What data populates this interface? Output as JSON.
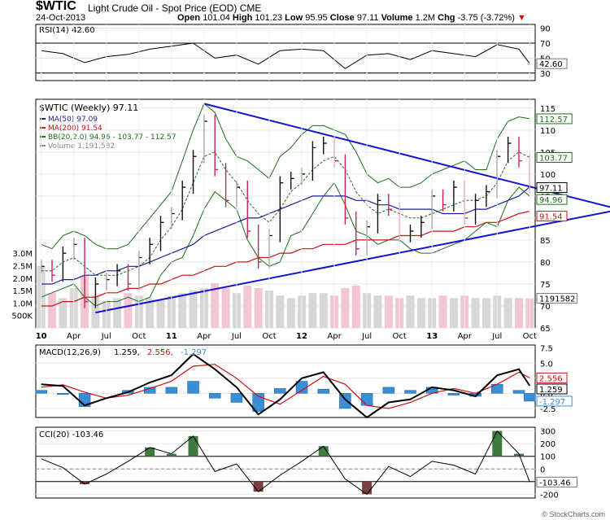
{
  "header": {
    "symbol": "$WTIC",
    "name": "Light Crude Oil - Spot Price (EOD)",
    "exchange": "CME",
    "date": "24-Oct-2013",
    "open_label": "Open",
    "open": "101.04",
    "high_label": "High",
    "high": "101.23",
    "low_label": "Low",
    "low": "95.95",
    "close_label": "Close",
    "close": "97.11",
    "volume_label": "Volume",
    "volume": "1.2M",
    "chg_label": "Chg",
    "chg": "-3.75 (-3.72%)"
  },
  "brand": "© StockCharts.com",
  "colors": {
    "ma50": "#1a1aa0",
    "ma200": "#cc1111",
    "bb": "#1f6e1f",
    "trend": "#1414cc",
    "up": "#111111",
    "down": "#cc2255",
    "macd_hist": "#3a8ed6",
    "cci_fill": "#3f7a3f",
    "cci_neg": "#7a3f3f"
  },
  "chart_data": [
    {
      "type": "line",
      "panel": "RSI",
      "legend": "RSI(14) 42.60",
      "last_value": "42.60",
      "y_ticks": [
        "90",
        "70",
        "50",
        "30"
      ],
      "ylim": [
        20,
        95
      ],
      "overbought": 70,
      "oversold": 30,
      "x": [
        "2010-01",
        "2010-03",
        "2010-05",
        "2010-07",
        "2010-09",
        "2010-11",
        "2011-01",
        "2011-03",
        "2011-05",
        "2011-07",
        "2011-09",
        "2011-11",
        "2012-01",
        "2012-03",
        "2012-05",
        "2012-07",
        "2012-09",
        "2012-11",
        "2013-01",
        "2013-03",
        "2013-05",
        "2013-07",
        "2013-09",
        "2013-10"
      ],
      "values": [
        60,
        56,
        44,
        52,
        55,
        62,
        66,
        70,
        50,
        54,
        42,
        60,
        62,
        60,
        36,
        54,
        56,
        48,
        60,
        56,
        52,
        68,
        62,
        42.6
      ]
    },
    {
      "type": "line",
      "panel": "Price",
      "legend": [
        {
          "name": "$WTIC (Weekly) 97.11",
          "color": "#000000"
        },
        {
          "name": "MA(50) 97.09",
          "color": "#1a1aa0"
        },
        {
          "name": "MA(200) 91.54",
          "color": "#cc1111"
        },
        {
          "name": "BB(20,2.0) 94.96 - 103.77 - 112.57",
          "color": "#1f6e1f"
        },
        {
          "name": "Volume 1,191,582",
          "color": "#888888"
        }
      ],
      "x_labels": [
        "10",
        "Apr",
        "Jul",
        "Oct",
        "11",
        "Apr",
        "Jul",
        "Oct",
        "12",
        "Apr",
        "Jul",
        "Oct",
        "13",
        "Apr",
        "Jul",
        "Oct"
      ],
      "y_ticks": [
        "115",
        "110",
        "105",
        "100",
        "95",
        "90",
        "85",
        "80",
        "75",
        "70",
        "65"
      ],
      "volume_ticks": [
        "3.0M",
        "2.5M",
        "2.0M",
        "1.5M",
        "1.0M",
        "500K"
      ],
      "ylim": [
        65,
        117
      ],
      "last_labels": {
        "bb_upper": "112.57",
        "bb_mid": "103.77",
        "close": "97.11",
        "bb_lower": "94.96",
        "ma200": "91.54",
        "volume": "1191582"
      },
      "x": [
        "2010-01",
        "2010-02",
        "2010-03",
        "2010-04",
        "2010-05",
        "2010-06",
        "2010-07",
        "2010-08",
        "2010-09",
        "2010-10",
        "2010-11",
        "2010-12",
        "2011-01",
        "2011-02",
        "2011-03",
        "2011-04",
        "2011-05",
        "2011-06",
        "2011-07",
        "2011-08",
        "2011-09",
        "2011-10",
        "2011-11",
        "2011-12",
        "2012-01",
        "2012-02",
        "2012-03",
        "2012-04",
        "2012-05",
        "2012-06",
        "2012-07",
        "2012-08",
        "2012-09",
        "2012-10",
        "2012-11",
        "2012-12",
        "2013-01",
        "2013-02",
        "2013-03",
        "2013-04",
        "2013-05",
        "2013-06",
        "2013-07",
        "2013-08",
        "2013-09",
        "2013-10"
      ],
      "close": [
        79,
        77,
        82,
        84,
        71,
        75,
        76,
        78,
        75,
        81,
        84,
        89,
        91,
        97,
        104,
        112,
        101,
        94,
        97,
        87,
        80,
        86,
        98,
        99,
        100,
        106,
        107,
        103,
        90,
        83,
        88,
        94,
        92,
        86,
        87,
        89,
        95,
        93,
        97,
        90,
        94,
        96,
        104,
        107,
        103,
        97.11
      ],
      "ma50": [
        75,
        75,
        76,
        76,
        77,
        77,
        78,
        78,
        79,
        79,
        80,
        81,
        82,
        83,
        84,
        86,
        87,
        88,
        89,
        90,
        90,
        91,
        92,
        93,
        94,
        95,
        95,
        95,
        95,
        94,
        94,
        93,
        93,
        92,
        92,
        92,
        92,
        91,
        91,
        91,
        92,
        92,
        93,
        94,
        95,
        97.09
      ],
      "ma200": [
        70,
        70,
        71,
        71,
        72,
        72,
        73,
        73,
        74,
        74,
        75,
        75,
        76,
        77,
        77,
        78,
        79,
        79,
        80,
        80,
        81,
        81,
        82,
        82,
        83,
        83,
        84,
        84,
        84,
        85,
        85,
        85,
        85,
        86,
        86,
        86,
        87,
        87,
        87,
        88,
        88,
        89,
        89,
        90,
        91,
        91.54
      ],
      "bb_upper": [
        84,
        83,
        86,
        87,
        86,
        84,
        83,
        83,
        84,
        87,
        90,
        93,
        96,
        103,
        110,
        116,
        114,
        108,
        104,
        103,
        101,
        99,
        104,
        106,
        109,
        111,
        111,
        110,
        109,
        105,
        100,
        98,
        99,
        97,
        97,
        98,
        100,
        101,
        102,
        103,
        101,
        101,
        108,
        112,
        113,
        112.57
      ],
      "bb_mid": [
        78,
        78,
        80,
        81,
        79,
        77,
        77,
        77,
        78,
        79,
        81,
        85,
        88,
        92,
        98,
        104,
        105,
        101,
        98,
        94,
        91,
        89,
        92,
        96,
        98,
        101,
        103,
        104,
        101,
        96,
        93,
        91,
        92,
        91,
        90,
        90,
        91,
        92,
        93,
        94,
        94,
        95,
        98,
        103,
        105,
        103.77
      ],
      "bb_lower": [
        72,
        73,
        74,
        75,
        72,
        70,
        71,
        71,
        72,
        71,
        72,
        77,
        80,
        81,
        86,
        92,
        96,
        94,
        92,
        85,
        81,
        79,
        80,
        86,
        87,
        91,
        95,
        98,
        93,
        87,
        86,
        84,
        85,
        85,
        83,
        82,
        82,
        83,
        84,
        85,
        87,
        89,
        88,
        94,
        97,
        94.96
      ],
      "volume_m": [
        2.5,
        1.4,
        1.2,
        1.6,
        2.1,
        1.3,
        1.1,
        1.2,
        1.4,
        1.3,
        1.2,
        1.1,
        1.3,
        1.4,
        1.5,
        1.6,
        1.8,
        1.6,
        1.4,
        1.7,
        1.6,
        1.5,
        1.3,
        1.2,
        1.3,
        1.4,
        1.4,
        1.3,
        1.6,
        1.7,
        1.4,
        1.3,
        1.3,
        1.2,
        1.3,
        1.2,
        1.2,
        1.3,
        1.2,
        1.3,
        1.2,
        1.2,
        1.3,
        1.2,
        1.2,
        1.19
      ]
    },
    {
      "type": "line",
      "panel": "MACD",
      "legend": [
        {
          "name": "MACD(12,26,9)",
          "value": "1.259",
          "color": "#000000"
        },
        {
          "name": "",
          "value": "2.556",
          "color": "#cc1111"
        },
        {
          "name": "",
          "value": "-1.297",
          "color": "#3a8ed6"
        }
      ],
      "y_ticks": [
        "7.5",
        "5.0",
        "2.5",
        "0.0",
        "-2.5"
      ],
      "ylim": [
        -4,
        8
      ],
      "last_labels": {
        "signal": "2.556",
        "macd": "1.259",
        "hist": "-1.297"
      },
      "x": [
        "2010-01",
        "2010-03",
        "2010-05",
        "2010-07",
        "2010-09",
        "2010-11",
        "2011-01",
        "2011-03",
        "2011-05",
        "2011-07",
        "2011-09",
        "2011-11",
        "2012-01",
        "2012-03",
        "2012-05",
        "2012-07",
        "2012-09",
        "2012-11",
        "2013-01",
        "2013-03",
        "2013-05",
        "2013-07",
        "2013-09",
        "2013-10"
      ],
      "macd": [
        1.5,
        1.2,
        -2.0,
        -0.8,
        0.2,
        1.8,
        3.0,
        6.5,
        4.0,
        1.0,
        -3.5,
        -1.0,
        2.5,
        3.5,
        -1.0,
        -4.0,
        -1.5,
        -1.0,
        1.0,
        0.5,
        -0.5,
        3.0,
        4.0,
        1.259
      ],
      "signal": [
        1.0,
        1.4,
        0.2,
        -0.8,
        -0.3,
        0.8,
        2.0,
        4.5,
        4.8,
        2.5,
        -0.5,
        -1.8,
        0.5,
        2.8,
        1.5,
        -2.0,
        -2.5,
        -1.5,
        0.0,
        0.8,
        0.0,
        1.5,
        3.5,
        2.556
      ],
      "histogram": [
        0.5,
        -0.2,
        -2.2,
        0.0,
        0.5,
        1.0,
        1.0,
        2.0,
        -0.8,
        -1.5,
        -3.0,
        0.8,
        2.0,
        0.7,
        -2.5,
        -2.0,
        1.0,
        0.5,
        1.0,
        -0.3,
        -0.5,
        1.5,
        0.5,
        -1.297
      ]
    },
    {
      "type": "line",
      "panel": "CCI",
      "legend": "CCI(20) -103.46",
      "last_value": "-103.46",
      "y_ticks": [
        "300",
        "200",
        "100",
        "0",
        "-100",
        "-200"
      ],
      "ylim": [
        -230,
        330
      ],
      "x": [
        "2010-01",
        "2010-03",
        "2010-05",
        "2010-07",
        "2010-09",
        "2010-11",
        "2011-01",
        "2011-03",
        "2011-05",
        "2011-07",
        "2011-09",
        "2011-11",
        "2012-01",
        "2012-03",
        "2012-05",
        "2012-07",
        "2012-09",
        "2012-11",
        "2013-01",
        "2013-03",
        "2013-05",
        "2013-07",
        "2013-09",
        "2013-10"
      ],
      "values": [
        80,
        10,
        -120,
        -40,
        60,
        170,
        120,
        260,
        -20,
        40,
        -180,
        -50,
        60,
        180,
        -80,
        -200,
        20,
        -60,
        60,
        30,
        -40,
        300,
        120,
        -103.46
      ]
    }
  ]
}
